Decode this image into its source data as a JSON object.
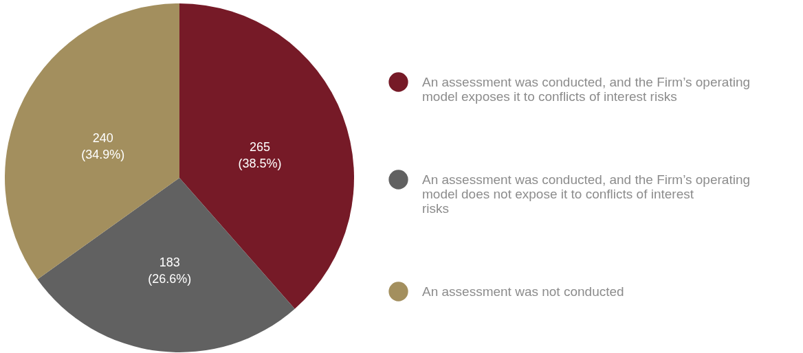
{
  "chart_data": {
    "type": "pie",
    "categories": [
      "An assessment was conducted, and the Firm’s operating model exposes it to conflicts of interest risks",
      "An assessment was conducted, and the Firm’s operating model does not expose it to conflicts of interest risks",
      "An assessment was not conducted"
    ],
    "values": [
      265,
      183,
      240
    ],
    "colors": [
      "#761a27",
      "#616161",
      "#a38f5e"
    ],
    "value_labels": [
      "265 (38.5%)",
      "183 (26.6%)",
      "240 (34.9%)"
    ],
    "legend": "right"
  }
}
